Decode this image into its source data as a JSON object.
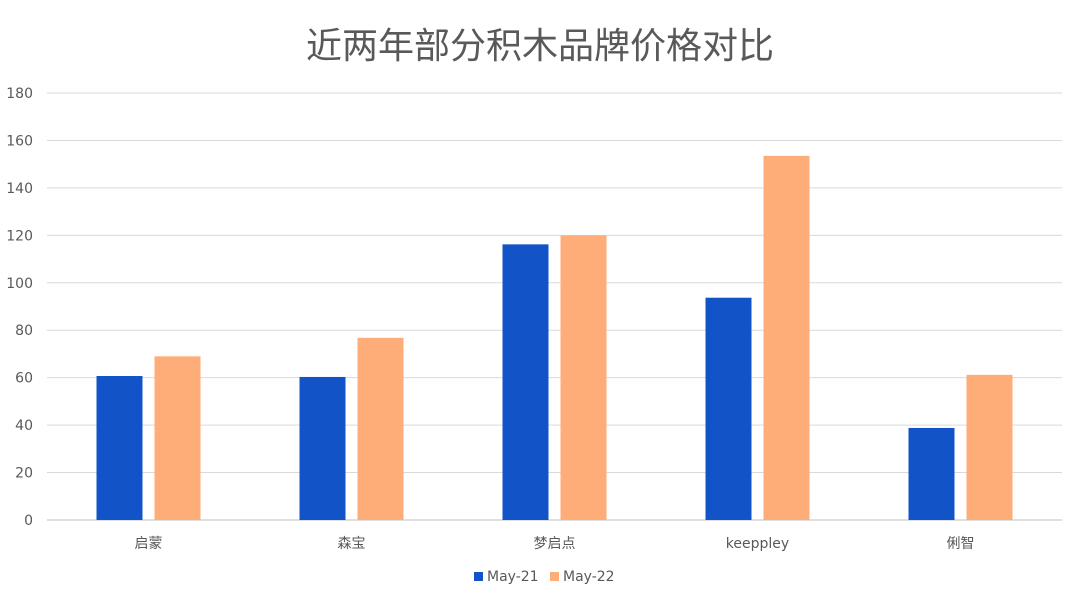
{
  "chart_data": {
    "type": "bar",
    "title": "近两年部分积木品牌价格对比",
    "categories": [
      "启蒙",
      "森宝",
      "梦启点",
      "keeppley",
      "俐智"
    ],
    "series": [
      {
        "name": "May-21",
        "values": [
          60.7,
          60.3,
          116.2,
          93.7,
          38.8
        ],
        "color": "#1254c8"
      },
      {
        "name": "May-22",
        "values": [
          69.0,
          76.8,
          120.0,
          153.5,
          61.2
        ],
        "color": "#ffad78"
      }
    ],
    "yticks": [
      "0",
      "20",
      "40",
      "60",
      "80",
      "100",
      "120",
      "140",
      "160",
      "180"
    ],
    "ylim": [
      0,
      180
    ],
    "grid": true,
    "legend_position": "bottom"
  }
}
